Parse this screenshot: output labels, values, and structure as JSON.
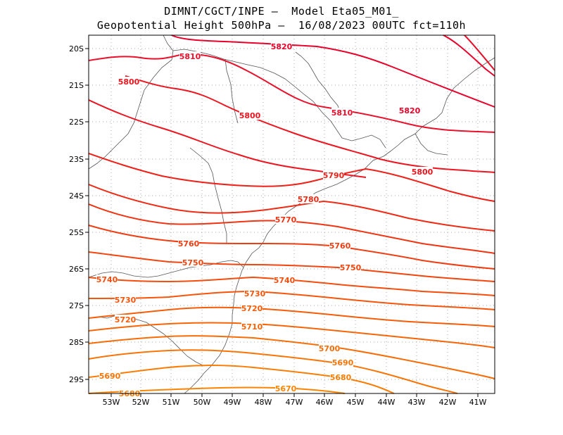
{
  "header": {
    "line1": "DIMNT/CGCT/INPE –  Model Eta05_M01_",
    "line2": "Geopotential Height 500hPa –  16/08/2023 00UTC fct=110h"
  },
  "map": {
    "lon_range": [
      -53.7,
      -40.5
    ],
    "lat_range": [
      -29.4,
      -19.7
    ],
    "x_ticks": [
      "53W",
      "52W",
      "51W",
      "50W",
      "49W",
      "48W",
      "47W",
      "46W",
      "45W",
      "44W",
      "43W",
      "42W",
      "41W"
    ],
    "y_ticks": [
      "20S",
      "21S",
      "22S",
      "23S",
      "24S",
      "25S",
      "26S",
      "27S",
      "28S",
      "29S"
    ],
    "grid": true,
    "coastline_color": "#555555"
  },
  "contours": {
    "variable": "Geopotential Height 500hPa",
    "levels": [
      {
        "value": 5820,
        "color": "#e8002a",
        "labels": [
          "5820",
          "5820"
        ]
      },
      {
        "value": 5810,
        "color": "#e8102a",
        "labels": [
          "5810",
          "5810"
        ]
      },
      {
        "value": 5800,
        "color": "#ec1520",
        "labels": [
          "5800",
          "5800",
          "5800"
        ]
      },
      {
        "value": 5790,
        "color": "#ee2018",
        "labels": [
          "5790"
        ]
      },
      {
        "value": 5780,
        "color": "#ef2a14",
        "labels": [
          "5780"
        ]
      },
      {
        "value": 5770,
        "color": "#f03412",
        "labels": [
          "5770"
        ]
      },
      {
        "value": 5760,
        "color": "#f03c10",
        "labels": [
          "5760",
          "5760"
        ]
      },
      {
        "value": 5750,
        "color": "#f2440e",
        "labels": [
          "5750",
          "5750"
        ]
      },
      {
        "value": 5740,
        "color": "#f44c0c",
        "labels": [
          "5740",
          "5740"
        ]
      },
      {
        "value": 5730,
        "color": "#f5540a",
        "labels": [
          "5730",
          "5730"
        ]
      },
      {
        "value": 5720,
        "color": "#f65c08",
        "labels": [
          "5720",
          "5720"
        ]
      },
      {
        "value": 5710,
        "color": "#f76406",
        "labels": [
          "5710"
        ]
      },
      {
        "value": 5700,
        "color": "#f86c05",
        "labels": [
          "5700"
        ]
      },
      {
        "value": 5690,
        "color": "#f97404",
        "labels": [
          "5690",
          "5690"
        ]
      },
      {
        "value": 5680,
        "color": "#fa7c03",
        "labels": [
          "5680",
          "5680"
        ]
      },
      {
        "value": 5670,
        "color": "#fb8402",
        "labels": [
          "5670"
        ]
      }
    ]
  }
}
